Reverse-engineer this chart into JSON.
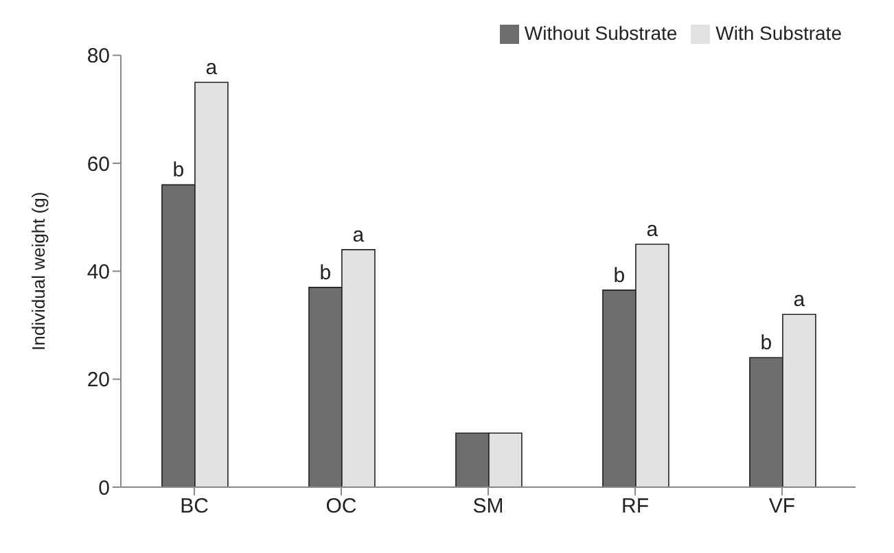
{
  "chart_data": {
    "type": "bar",
    "ylabel": "Individual weight (g)",
    "categories": [
      "BC",
      "OC",
      "SM",
      "RF",
      "VF"
    ],
    "series": [
      {
        "name": "Without Substrate",
        "color": "#6e6e6e",
        "values": [
          56,
          37,
          10,
          36.5,
          24
        ]
      },
      {
        "name": "With Substrate",
        "color": "#e2e2e2",
        "values": [
          75,
          44,
          10,
          45,
          32
        ]
      }
    ],
    "ylim": [
      0,
      80
    ],
    "yticks": [
      0,
      20,
      40,
      60,
      80
    ],
    "grid": false,
    "legend": "top right",
    "annotations": [
      {
        "text": "b",
        "x": "BC",
        "y": 56
      },
      {
        "text": "a",
        "x": "BC",
        "y": 75
      },
      {
        "text": "b",
        "x": "OC",
        "y": 37
      },
      {
        "text": "a",
        "x": "OC",
        "y": 44
      },
      {
        "text": "b",
        "x": "RF",
        "y": 36.5
      },
      {
        "text": "a",
        "x": "RF",
        "y": 45
      },
      {
        "text": "b",
        "x": "VF",
        "y": 24
      },
      {
        "text": "a",
        "x": "VF",
        "y": 32
      }
    ]
  }
}
